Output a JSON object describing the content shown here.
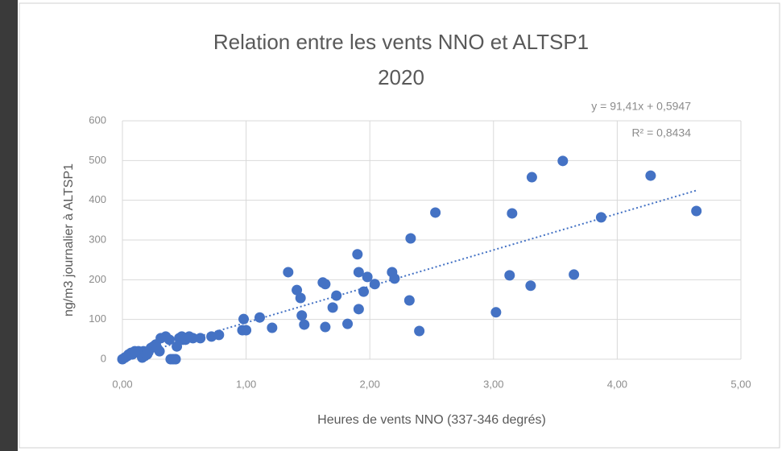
{
  "chart_data": {
    "type": "scatter",
    "title": "Relation entre les vents NNO et ALTSP1",
    "subtitle": "2020",
    "x_label": "Heures de vents NNO (337-346 degrés)",
    "y_label": "ng/m3 journalier à ALTSP1",
    "xlim": [
      0,
      5
    ],
    "ylim": [
      0,
      600
    ],
    "xticks": [
      {
        "value": 0,
        "label": "0,00"
      },
      {
        "value": 1,
        "label": "1,00"
      },
      {
        "value": 2,
        "label": "2,00"
      },
      {
        "value": 3,
        "label": "3,00"
      },
      {
        "value": 4,
        "label": "4,00"
      },
      {
        "value": 5,
        "label": "5,00"
      }
    ],
    "yticks": [
      0,
      100,
      200,
      300,
      400,
      500,
      600
    ],
    "grid": true,
    "color": "#4472c4",
    "x": [
      0,
      0.02,
      0.04,
      0.05,
      0.07,
      0.08,
      0.1,
      0.12,
      0.13,
      0.15,
      0.16,
      0.17,
      0.18,
      0.2,
      0.21,
      0.23,
      0.25,
      0.27,
      0.28,
      0.3,
      0.31,
      0.35,
      0.38,
      0.39,
      0.41,
      0.43,
      0.44,
      0.46,
      0.48,
      0.49,
      0.51,
      0.54,
      0.57,
      0.63,
      0.72,
      0.78,
      0.97,
      0.98,
      1.0,
      1.11,
      1.21,
      1.34,
      1.41,
      1.44,
      1.45,
      1.47,
      1.62,
      1.64,
      1.64,
      1.7,
      1.73,
      1.82,
      1.9,
      1.91,
      1.91,
      1.95,
      1.98,
      2.04,
      2.18,
      2.2,
      2.32,
      2.33,
      2.4,
      2.53,
      3.02,
      3.13,
      3.15,
      3.3,
      3.31,
      3.56,
      3.65,
      3.87,
      4.27,
      4.64
    ],
    "values": [
      0,
      4,
      8,
      12,
      16,
      12,
      20,
      18,
      20,
      12,
      4,
      20,
      8,
      12,
      18,
      28,
      32,
      37,
      28,
      20,
      53,
      57,
      49,
      0,
      0,
      0,
      32,
      53,
      57,
      49,
      49,
      57,
      53,
      53,
      57,
      61,
      73,
      101,
      73,
      105,
      79,
      219,
      174,
      154,
      110,
      87,
      193,
      189,
      81,
      130,
      160,
      89,
      264,
      219,
      126,
      170,
      207,
      189,
      219,
      203,
      148,
      304,
      71,
      369,
      118,
      211,
      367,
      185,
      458,
      499,
      213,
      357,
      462,
      373
    ],
    "trendline": {
      "slope": 91.41,
      "intercept": 0.5947,
      "label": "y = 91,41x + 0,5947",
      "r2": 0.8434,
      "r2_label": "R² = 0,8434"
    }
  }
}
